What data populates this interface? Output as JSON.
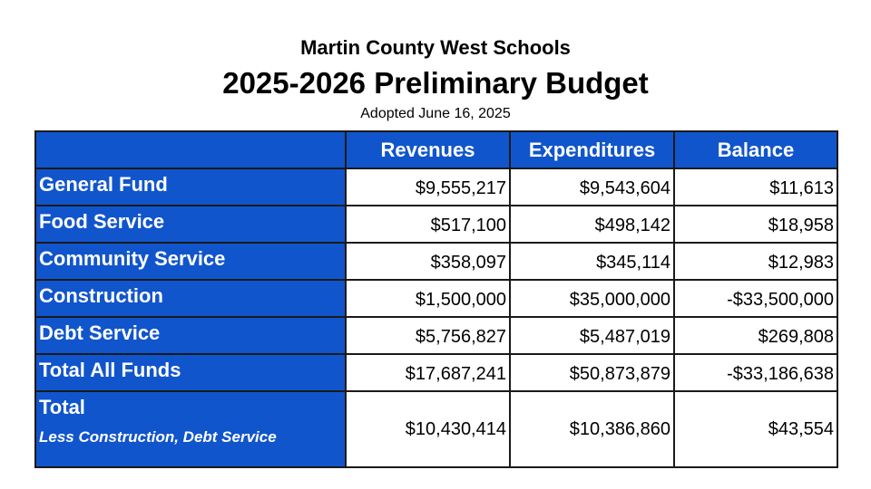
{
  "title": {
    "org": "Martin County West Schools",
    "main": "2025-2026 Preliminary Budget",
    "subtitle": "Adopted June 16, 2025"
  },
  "table": {
    "headers": [
      "",
      "Revenues",
      "Expenditures",
      "Balance"
    ],
    "rows": [
      {
        "label": "General Fund",
        "revenues": "$9,555,217",
        "expenditures": "$9,543,604",
        "balance": "$11,613"
      },
      {
        "label": "Food Service",
        "revenues": "$517,100",
        "expenditures": "$498,142",
        "balance": "$18,958"
      },
      {
        "label": "Community Service",
        "revenues": "$358,097",
        "expenditures": "$345,114",
        "balance": "$12,983"
      },
      {
        "label": "Construction",
        "revenues": "$1,500,000",
        "expenditures": "$35,000,000",
        "balance": "-$33,500,000"
      },
      {
        "label": "Debt Service",
        "revenues": "$5,756,827",
        "expenditures": "$5,487,019",
        "balance": "$269,808"
      },
      {
        "label": "Total All Funds",
        "revenues": "$17,687,241",
        "expenditures": "$50,873,879",
        "balance": "-$33,186,638"
      },
      {
        "label": "Total",
        "sublabel": "Less Construction, Debt Service",
        "revenues": "$10,430,414",
        "expenditures": "$10,386,860",
        "balance": "$43,554"
      }
    ]
  },
  "colors": {
    "header_bg": "#1155cc"
  }
}
